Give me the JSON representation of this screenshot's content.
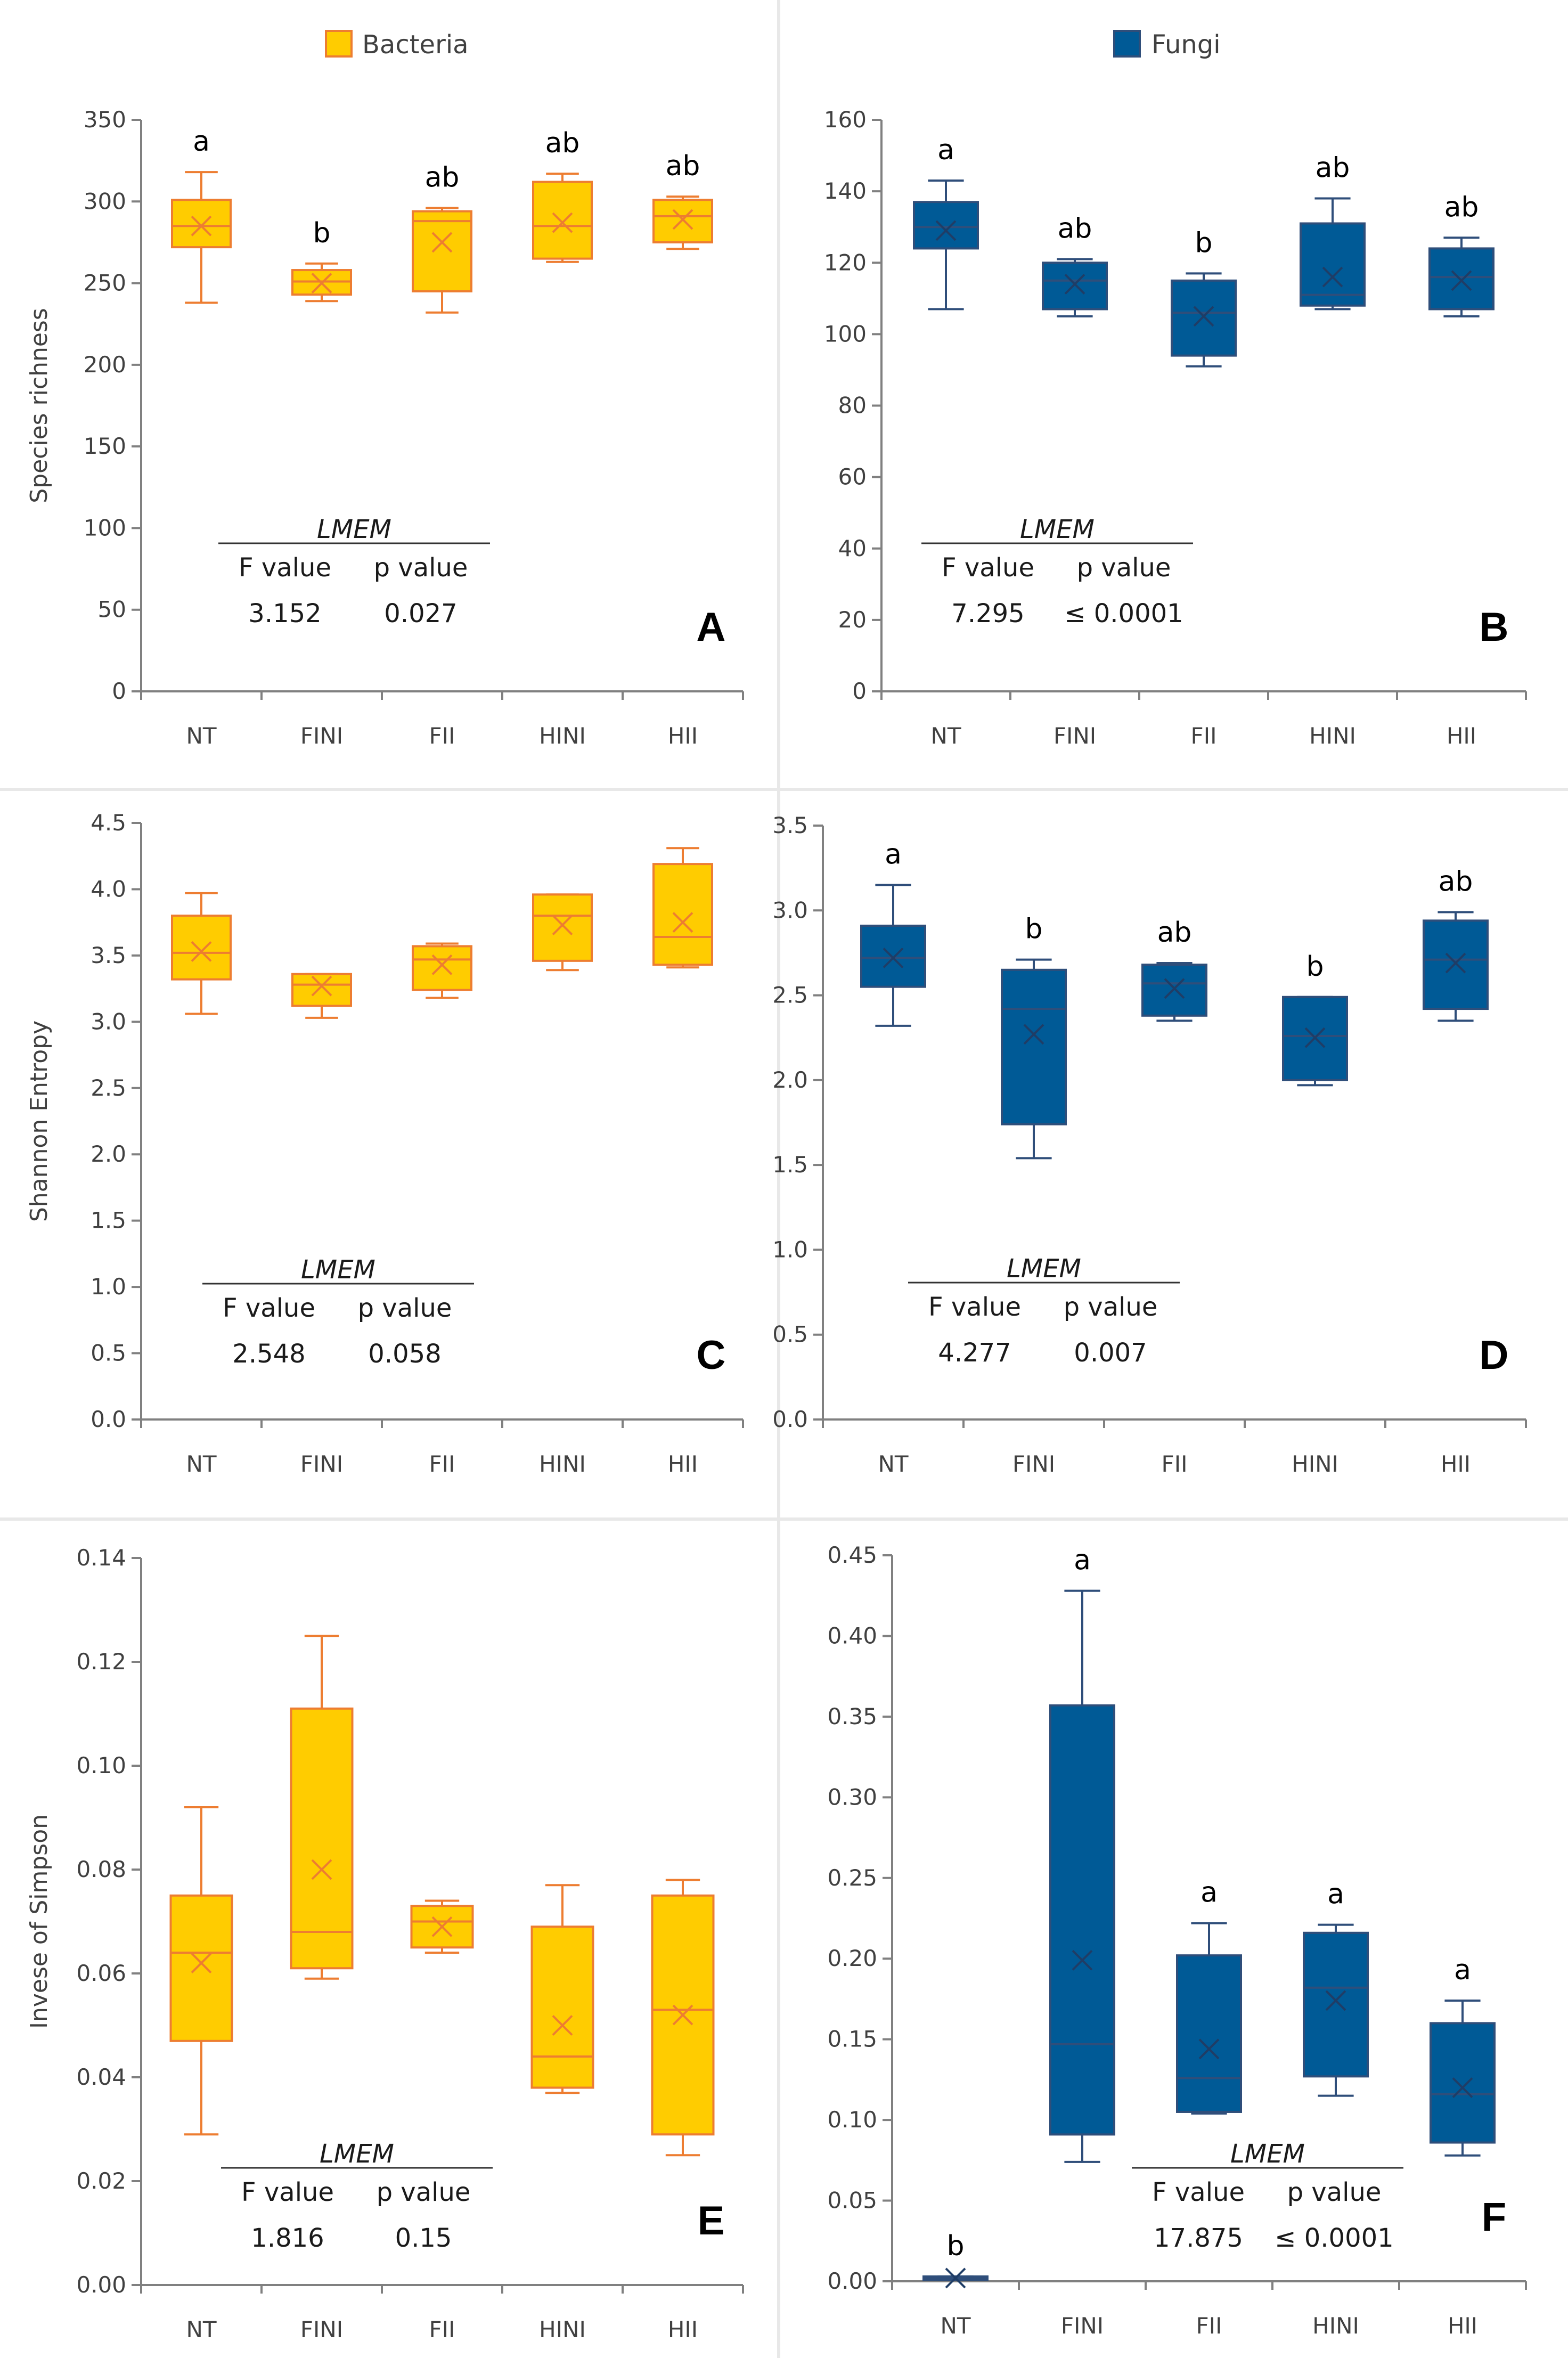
{
  "legend": [
    {
      "name": "Bacteria",
      "fill": "#FFCC00",
      "stroke": "#ED7D31"
    },
    {
      "name": "Fungi",
      "fill": "#005A96",
      "stroke": "#2F4E7A"
    }
  ],
  "colors": {
    "bacteria_fill": "#FFCC00",
    "bacteria_stroke": "#ED7D31",
    "fungi_fill": "#005A96",
    "fungi_stroke": "#2F4E7A",
    "axis": "#808080",
    "divider": "#E6E6E6"
  },
  "chart_data": [
    {
      "id": "A",
      "type": "box",
      "group": "Bacteria",
      "ylabel": "Species richness",
      "ylim": [
        0,
        350
      ],
      "yticks": [
        0,
        50,
        100,
        150,
        200,
        250,
        300,
        350
      ],
      "ytick_labels": [
        "0",
        "50",
        "100",
        "150",
        "200",
        "250",
        "300",
        "350"
      ],
      "categories": [
        "NT",
        "FINI",
        "FII",
        "HINI",
        "HII"
      ],
      "boxes": [
        {
          "min": 238,
          "q1": 272,
          "median": 285,
          "q3": 301,
          "max": 318,
          "mean": 285,
          "letter": "a"
        },
        {
          "min": 239,
          "q1": 243,
          "median": 251,
          "q3": 258,
          "max": 262,
          "mean": 250,
          "letter": "b"
        },
        {
          "min": 232,
          "q1": 245,
          "median": 288,
          "q3": 294,
          "max": 296,
          "mean": 275,
          "letter": "ab"
        },
        {
          "min": 263,
          "q1": 265,
          "median": 285,
          "q3": 312,
          "max": 317,
          "mean": 287,
          "letter": "ab"
        },
        {
          "min": 271,
          "q1": 275,
          "median": 291,
          "q3": 301,
          "max": 303,
          "mean": 289,
          "letter": "ab"
        }
      ],
      "stats": {
        "title": "LMEM",
        "f_label": "F value",
        "p_label": "p value",
        "f": "3.152",
        "p": "0.027"
      }
    },
    {
      "id": "B",
      "type": "box",
      "group": "Fungi",
      "ylabel": "",
      "ylim": [
        0,
        160
      ],
      "yticks": [
        0,
        20,
        40,
        60,
        80,
        100,
        120,
        140,
        160
      ],
      "ytick_labels": [
        "0",
        "20",
        "40",
        "60",
        "80",
        "100",
        "120",
        "140",
        "160"
      ],
      "categories": [
        "NT",
        "FINI",
        "FII",
        "HINI",
        "HII"
      ],
      "boxes": [
        {
          "min": 107,
          "q1": 124,
          "median": 130,
          "q3": 137,
          "max": 143,
          "mean": 129,
          "letter": "a"
        },
        {
          "min": 105,
          "q1": 107,
          "median": 115,
          "q3": 120,
          "max": 121,
          "mean": 114,
          "letter": "ab"
        },
        {
          "min": 91,
          "q1": 94,
          "median": 106,
          "q3": 115,
          "max": 117,
          "mean": 105,
          "letter": "b"
        },
        {
          "min": 107,
          "q1": 108,
          "median": 111,
          "q3": 131,
          "max": 138,
          "mean": 116,
          "letter": "ab"
        },
        {
          "min": 105,
          "q1": 107,
          "median": 116,
          "q3": 124,
          "max": 127,
          "mean": 115,
          "letter": "ab"
        }
      ],
      "stats": {
        "title": "LMEM",
        "f_label": "F value",
        "p_label": "p value",
        "f": "7.295",
        "p": "≤ 0.0001"
      }
    },
    {
      "id": "C",
      "type": "box",
      "group": "Bacteria",
      "ylabel": "Shannon Entropy",
      "ylim": [
        0,
        4.5
      ],
      "yticks": [
        0,
        0.5,
        1.0,
        1.5,
        2.0,
        2.5,
        3.0,
        3.5,
        4.0,
        4.5
      ],
      "ytick_labels": [
        "0.0",
        "0.5",
        "1.0",
        "1.5",
        "2.0",
        "2.5",
        "3.0",
        "3.5",
        "4.0",
        "4.5"
      ],
      "categories": [
        "NT",
        "FINI",
        "FII",
        "HINI",
        "HII"
      ],
      "boxes": [
        {
          "min": 3.06,
          "q1": 3.32,
          "median": 3.52,
          "q3": 3.8,
          "max": 3.97,
          "mean": 3.53,
          "letter": ""
        },
        {
          "min": 3.03,
          "q1": 3.12,
          "median": 3.28,
          "q3": 3.36,
          "max": 3.36,
          "mean": 3.27,
          "letter": ""
        },
        {
          "min": 3.18,
          "q1": 3.24,
          "median": 3.47,
          "q3": 3.57,
          "max": 3.59,
          "mean": 3.43,
          "letter": ""
        },
        {
          "min": 3.39,
          "q1": 3.46,
          "median": 3.8,
          "q3": 3.96,
          "max": 3.96,
          "mean": 3.73,
          "letter": ""
        },
        {
          "min": 3.41,
          "q1": 3.43,
          "median": 3.64,
          "q3": 4.19,
          "max": 4.31,
          "mean": 3.75,
          "letter": ""
        }
      ],
      "stats": {
        "title": "LMEM",
        "f_label": "F value",
        "p_label": "p value",
        "f": "2.548",
        "p": "0.058"
      }
    },
    {
      "id": "D",
      "type": "box",
      "group": "Fungi",
      "ylabel": "",
      "ylim": [
        0,
        3.5
      ],
      "yticks": [
        0,
        0.5,
        1.0,
        1.5,
        2.0,
        2.5,
        3.0,
        3.5
      ],
      "ytick_labels": [
        "0.0",
        "0.5",
        "1.0",
        "1.5",
        "2.0",
        "2.5",
        "3.0",
        "3.5"
      ],
      "categories": [
        "NT",
        "FINI",
        "FII",
        "HINI",
        "HII"
      ],
      "boxes": [
        {
          "min": 2.32,
          "q1": 2.55,
          "median": 2.72,
          "q3": 2.91,
          "max": 3.15,
          "mean": 2.72,
          "letter": "a"
        },
        {
          "min": 1.54,
          "q1": 1.74,
          "median": 2.42,
          "q3": 2.65,
          "max": 2.71,
          "mean": 2.27,
          "letter": "b"
        },
        {
          "min": 2.35,
          "q1": 2.38,
          "median": 2.57,
          "q3": 2.68,
          "max": 2.69,
          "mean": 2.54,
          "letter": "ab"
        },
        {
          "min": 1.97,
          "q1": 2.0,
          "median": 2.26,
          "q3": 2.49,
          "max": 2.49,
          "mean": 2.25,
          "letter": "b"
        },
        {
          "min": 2.35,
          "q1": 2.42,
          "median": 2.71,
          "q3": 2.94,
          "max": 2.99,
          "mean": 2.69,
          "letter": "ab"
        }
      ],
      "stats": {
        "title": "LMEM",
        "f_label": "F value",
        "p_label": "p value",
        "f": "4.277",
        "p": "0.007"
      }
    },
    {
      "id": "E",
      "type": "box",
      "group": "Bacteria",
      "ylabel": "Invese of Simpson",
      "ylim": [
        0,
        0.14
      ],
      "yticks": [
        0,
        0.02,
        0.04,
        0.06,
        0.08,
        0.1,
        0.12,
        0.14
      ],
      "ytick_labels": [
        "0.00",
        "0.02",
        "0.04",
        "0.06",
        "0.08",
        "0.10",
        "0.12",
        "0.14"
      ],
      "categories": [
        "NT",
        "FINI",
        "FII",
        "HINI",
        "HII"
      ],
      "boxes": [
        {
          "min": 0.029,
          "q1": 0.047,
          "median": 0.064,
          "q3": 0.075,
          "max": 0.092,
          "mean": 0.062,
          "letter": ""
        },
        {
          "min": 0.059,
          "q1": 0.061,
          "median": 0.068,
          "q3": 0.111,
          "max": 0.125,
          "mean": 0.08,
          "letter": ""
        },
        {
          "min": 0.064,
          "q1": 0.065,
          "median": 0.07,
          "q3": 0.073,
          "max": 0.074,
          "mean": 0.069,
          "letter": ""
        },
        {
          "min": 0.037,
          "q1": 0.038,
          "median": 0.044,
          "q3": 0.069,
          "max": 0.077,
          "mean": 0.05,
          "letter": ""
        },
        {
          "min": 0.025,
          "q1": 0.029,
          "median": 0.053,
          "q3": 0.075,
          "max": 0.078,
          "mean": 0.052,
          "letter": ""
        }
      ],
      "stats": {
        "title": "LMEM",
        "f_label": "F value",
        "p_label": "p value",
        "f": "1.816",
        "p": "0.15"
      }
    },
    {
      "id": "F",
      "type": "box",
      "group": "Fungi",
      "ylabel": "",
      "ylim": [
        0,
        0.45
      ],
      "yticks": [
        0,
        0.05,
        0.1,
        0.15,
        0.2,
        0.25,
        0.3,
        0.35,
        0.4,
        0.45
      ],
      "ytick_labels": [
        "0.00",
        "0.05",
        "0.10",
        "0.15",
        "0.20",
        "0.25",
        "0.30",
        "0.35",
        "0.40",
        "0.45"
      ],
      "categories": [
        "NT",
        "FINI",
        "FII",
        "HINI",
        "HII"
      ],
      "boxes": [
        {
          "min": 0.001,
          "q1": 0.001,
          "median": 0.002,
          "q3": 0.003,
          "max": 0.003,
          "mean": 0.002,
          "letter": "b"
        },
        {
          "min": 0.074,
          "q1": 0.091,
          "median": 0.147,
          "q3": 0.357,
          "max": 0.428,
          "mean": 0.199,
          "letter": "a"
        },
        {
          "min": 0.104,
          "q1": 0.105,
          "median": 0.126,
          "q3": 0.202,
          "max": 0.222,
          "mean": 0.144,
          "letter": "a"
        },
        {
          "min": 0.115,
          "q1": 0.127,
          "median": 0.182,
          "q3": 0.216,
          "max": 0.221,
          "mean": 0.174,
          "letter": "a"
        },
        {
          "min": 0.078,
          "q1": 0.086,
          "median": 0.116,
          "q3": 0.16,
          "max": 0.174,
          "mean": 0.12,
          "letter": "a"
        }
      ],
      "stats": {
        "title": "LMEM",
        "f_label": "F value",
        "p_label": "p value",
        "f": "17.875",
        "p": "≤ 0.0001"
      }
    }
  ]
}
